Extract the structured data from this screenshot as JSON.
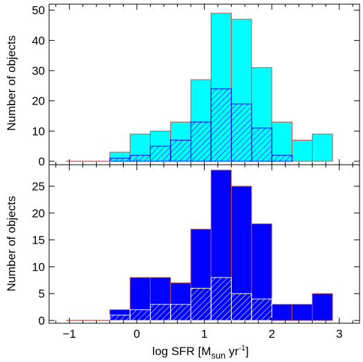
{
  "colors": {
    "top_fill": "#00ffff",
    "bottom_fill": "#0000ff",
    "bar_edge": "#c1524a",
    "hatch_top": "#0000ff",
    "hatch_bottom": "#ffffff",
    "zero_line": "#c1524a"
  },
  "chart_data": [
    {
      "type": "bar",
      "panel": "top",
      "ylabel": "Number of objects",
      "xlim": [
        -1.3,
        3.3
      ],
      "ylim": [
        0,
        52
      ],
      "y_ticks": [
        "0",
        "10",
        "20",
        "30",
        "40",
        "50"
      ],
      "bin_edges": [
        -0.4,
        -0.1,
        0.2,
        0.5,
        0.8,
        1.1,
        1.4,
        1.7,
        2.0,
        2.3,
        2.6,
        2.9
      ],
      "series": [
        {
          "values": [
            3,
            9,
            10,
            13,
            27,
            49,
            47,
            31,
            13,
            7,
            9
          ],
          "style": "solid"
        },
        {
          "values": [
            1,
            2,
            5,
            7,
            13,
            24,
            19,
            11,
            2,
            0,
            0
          ],
          "style": "hatched"
        }
      ]
    },
    {
      "type": "bar",
      "panel": "bottom",
      "xlabel_main": "log SFR [M",
      "xlabel_sub": "sun",
      "xlabel_unit": " yr",
      "xlabel_sup": "-1",
      "xlabel_close": "]",
      "ylabel": "Number of objects",
      "xlim": [
        -1.3,
        3.3
      ],
      "ylim": [
        0,
        29
      ],
      "x_ticks": [
        "−1",
        "0",
        "1",
        "2",
        "3"
      ],
      "y_ticks": [
        "0",
        "5",
        "10",
        "15",
        "20",
        "25"
      ],
      "bin_edges": [
        -0.4,
        -0.1,
        0.2,
        0.5,
        0.8,
        1.1,
        1.4,
        1.7,
        2.0,
        2.3,
        2.6,
        2.9
      ],
      "series": [
        {
          "values": [
            2,
            8,
            8,
            7,
            17,
            28,
            25,
            18,
            3,
            3,
            5
          ],
          "style": "solid"
        },
        {
          "values": [
            1,
            2,
            3,
            3,
            6,
            8,
            5,
            4,
            0,
            0,
            0
          ],
          "style": "hatched"
        }
      ]
    }
  ]
}
